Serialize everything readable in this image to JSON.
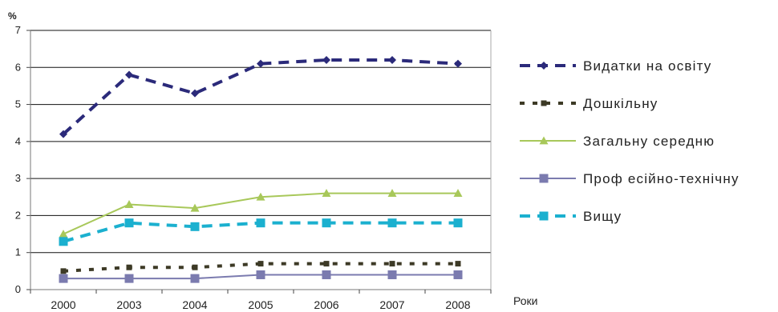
{
  "chart_data": {
    "type": "line",
    "y_unit": "%",
    "x_axis_label": "Роки",
    "categories": [
      "2000",
      "2003",
      "2004",
      "2005",
      "2006",
      "2007",
      "2008"
    ],
    "ylim": [
      0,
      7
    ],
    "yticks": [
      0,
      1,
      2,
      3,
      4,
      5,
      6,
      7
    ],
    "grid": true,
    "legend_position": "right",
    "series": [
      {
        "name": "Видатки на освіту",
        "values": [
          4.2,
          5.8,
          5.3,
          6.1,
          6.2,
          6.2,
          6.1
        ],
        "color": "#2b2a7a",
        "marker": "diamond",
        "dash": "dash"
      },
      {
        "name": "Дошкільну",
        "values": [
          0.5,
          0.6,
          0.6,
          0.7,
          0.7,
          0.7,
          0.7
        ],
        "color": "#3d3a26",
        "marker": "square",
        "dash": "dot"
      },
      {
        "name": "Загальну  середню",
        "values": [
          1.5,
          2.3,
          2.2,
          2.5,
          2.6,
          2.6,
          2.6
        ],
        "color": "#a8c85a",
        "marker": "triangle",
        "dash": "solid"
      },
      {
        "name": "Проф есійно-технічну",
        "values": [
          0.3,
          0.3,
          0.3,
          0.4,
          0.4,
          0.4,
          0.4
        ],
        "color": "#7b7baf",
        "marker": "square",
        "dash": "solid"
      },
      {
        "name": "Вищу",
        "values": [
          1.3,
          1.8,
          1.7,
          1.8,
          1.8,
          1.8,
          1.8
        ],
        "color": "#1bb0cf",
        "marker": "square",
        "dash": "dash"
      }
    ]
  }
}
